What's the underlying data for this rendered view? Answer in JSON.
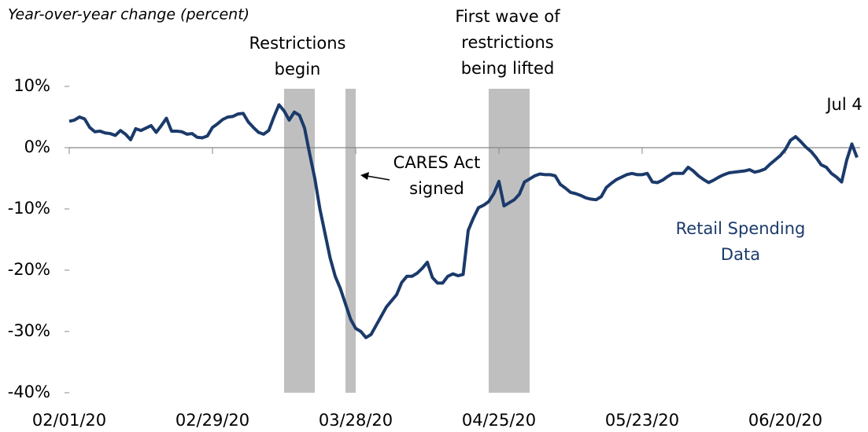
{
  "chart_data": {
    "type": "line",
    "title": "Year-over-year change (percent)",
    "x": [
      "02/01/20",
      "02/02/20",
      "02/03/20",
      "02/04/20",
      "02/05/20",
      "02/06/20",
      "02/07/20",
      "02/08/20",
      "02/09/20",
      "02/10/20",
      "02/11/20",
      "02/12/20",
      "02/13/20",
      "02/14/20",
      "02/15/20",
      "02/16/20",
      "02/17/20",
      "02/18/20",
      "02/19/20",
      "02/20/20",
      "02/21/20",
      "02/22/20",
      "02/23/20",
      "02/24/20",
      "02/25/20",
      "02/26/20",
      "02/27/20",
      "02/28/20",
      "02/29/20",
      "03/01/20",
      "03/02/20",
      "03/03/20",
      "03/04/20",
      "03/05/20",
      "03/06/20",
      "03/07/20",
      "03/08/20",
      "03/09/20",
      "03/10/20",
      "03/11/20",
      "03/12/20",
      "03/13/20",
      "03/14/20",
      "03/15/20",
      "03/16/20",
      "03/17/20",
      "03/18/20",
      "03/19/20",
      "03/20/20",
      "03/21/20",
      "03/22/20",
      "03/23/20",
      "03/24/20",
      "03/25/20",
      "03/26/20",
      "03/27/20",
      "03/28/20",
      "03/29/20",
      "03/30/20",
      "03/31/20",
      "04/01/20",
      "04/02/20",
      "04/03/20",
      "04/04/20",
      "04/05/20",
      "04/06/20",
      "04/07/20",
      "04/08/20",
      "04/09/20",
      "04/10/20",
      "04/11/20",
      "04/12/20",
      "04/13/20",
      "04/14/20",
      "04/15/20",
      "04/16/20",
      "04/17/20",
      "04/18/20",
      "04/19/20",
      "04/20/20",
      "04/21/20",
      "04/22/20",
      "04/23/20",
      "04/24/20",
      "04/25/20",
      "04/26/20",
      "04/27/20",
      "04/28/20",
      "04/29/20",
      "04/30/20",
      "05/01/20",
      "05/02/20",
      "05/03/20",
      "05/04/20",
      "05/05/20",
      "05/06/20",
      "05/07/20",
      "05/08/20",
      "05/09/20",
      "05/10/20",
      "05/11/20",
      "05/12/20",
      "05/13/20",
      "05/14/20",
      "05/15/20",
      "05/16/20",
      "05/17/20",
      "05/18/20",
      "05/19/20",
      "05/20/20",
      "05/21/20",
      "05/22/20",
      "05/23/20",
      "05/24/20",
      "05/25/20",
      "05/26/20",
      "05/27/20",
      "05/28/20",
      "05/29/20",
      "05/30/20",
      "05/31/20",
      "06/01/20",
      "06/02/20",
      "06/03/20",
      "06/04/20",
      "06/05/20",
      "06/06/20",
      "06/07/20",
      "06/08/20",
      "06/09/20",
      "06/10/20",
      "06/11/20",
      "06/12/20",
      "06/13/20",
      "06/14/20",
      "06/15/20",
      "06/16/20",
      "06/17/20",
      "06/18/20",
      "06/19/20",
      "06/20/20",
      "06/21/20",
      "06/22/20",
      "06/23/20",
      "06/24/20",
      "06/25/20",
      "06/26/20",
      "06/27/20",
      "06/28/20",
      "06/29/20",
      "06/30/20",
      "07/01/20",
      "07/02/20",
      "07/03/20",
      "07/04/20"
    ],
    "series": [
      {
        "name": "Retail Spending Data",
        "color": "#1b3a6b",
        "values": [
          4.3,
          4.5,
          5.0,
          4.7,
          3.3,
          2.6,
          2.7,
          2.4,
          2.3,
          2.0,
          2.8,
          2.2,
          1.3,
          3.1,
          2.8,
          3.2,
          3.6,
          2.5,
          3.6,
          4.8,
          2.7,
          2.7,
          2.6,
          2.2,
          2.3,
          1.7,
          1.6,
          1.9,
          3.3,
          3.9,
          4.6,
          5.0,
          5.1,
          5.5,
          5.6,
          4.2,
          3.3,
          2.5,
          2.2,
          2.8,
          5.0,
          7.0,
          6.0,
          4.5,
          5.8,
          5.3,
          3.2,
          -1.0,
          -5.0,
          -10,
          -14,
          -18,
          -21,
          -23,
          -25.5,
          -28,
          -29.5,
          -30.0,
          -31,
          -30.5,
          -29,
          -27.5,
          -26,
          -25,
          -24,
          -22,
          -21,
          -21,
          -20.5,
          -19.7,
          -18.7,
          -21.2,
          -22.1,
          -22.1,
          -21,
          -20.6,
          -20.9,
          -20.7,
          -13.5,
          -11.5,
          -9.8,
          -9.4,
          -8.8,
          -7.5,
          -5.5,
          -9.5,
          -9,
          -8.5,
          -7.6,
          -5.6,
          -5.1,
          -4.6,
          -4.3,
          -4.4,
          -4.4,
          -4.6,
          -6.0,
          -6.6,
          -7.3,
          -7.5,
          -7.8,
          -8.2,
          -8.4,
          -8.5,
          -8,
          -6.5,
          -5.8,
          -5.2,
          -4.8,
          -4.4,
          -4.2,
          -4.4,
          -4.4,
          -4.2,
          -5.6,
          -5.7,
          -5.3,
          -4.7,
          -4.2,
          -4.2,
          -4.2,
          -3.2,
          -3.8,
          -4.6,
          -5.2,
          -5.7,
          -5.3,
          -4.8,
          -4.4,
          -4.1,
          -4.0,
          -3.9,
          -3.8,
          -3.6,
          -4.0,
          -3.8,
          -3.5,
          -2.7,
          -2.0,
          -1.3,
          -0.3,
          1.2,
          1.8,
          1.0,
          0.1,
          -0.6,
          -1.6,
          -2.8,
          -3.2,
          -4.2,
          -4.8,
          -5.6,
          -2.0,
          0.6,
          -1.6
        ]
      }
    ],
    "xlim": [
      "02/01/20",
      "07/04/20"
    ],
    "xticks": [
      "02/01/20",
      "02/29/20",
      "03/28/20",
      "04/25/20",
      "05/23/20",
      "06/20/20"
    ],
    "ylim": [
      -40,
      10
    ],
    "yticks": [
      {
        "value": 10,
        "label": "10%"
      },
      {
        "value": 0,
        "label": "0%"
      },
      {
        "value": -10,
        "label": "-10%"
      },
      {
        "value": -20,
        "label": "-20%"
      },
      {
        "value": -30,
        "label": "-30%"
      },
      {
        "value": -40,
        "label": "-40%"
      }
    ],
    "shaded": [
      {
        "start": "03/14/20",
        "end": "03/20/20",
        "color": "#bfbfbf"
      },
      {
        "start": "03/26/20",
        "end": "03/28/20",
        "color": "#bfbfbf"
      },
      {
        "start": "04/23/20",
        "end": "05/01/20",
        "color": "#bfbfbf"
      }
    ],
    "annotations": {
      "restrictions_begin": [
        "Restrictions",
        "begin"
      ],
      "cares_act": [
        "CARES Act",
        "signed"
      ],
      "first_wave": [
        "First wave of",
        "restrictions",
        "being lifted"
      ],
      "series_label": [
        "Retail Spending",
        "Data"
      ],
      "end_label": "Jul 4"
    }
  }
}
